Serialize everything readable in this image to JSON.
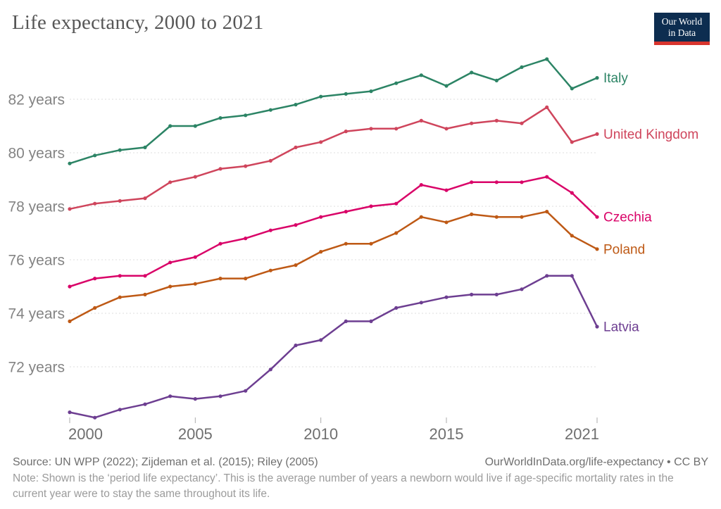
{
  "header": {
    "title": "Life expectancy, 2000 to 2021",
    "logo": {
      "line1": "Our World",
      "line2": "in Data"
    }
  },
  "footer": {
    "source": "Source: UN WPP (2022); Zijdeman et al. (2015); Riley (2005)",
    "attribution": "OurWorldInData.org/life-expectancy • CC BY",
    "note": "Note: Shown is the ‘period life expectancy’. This is the average number of years a newborn would live if age-specific mortality rates in the current year were to stay the same throughout its life."
  },
  "colors": {
    "title": "#575757",
    "axis_text": "#848484",
    "gridline": "#dcdcdc",
    "logo_navy": "#0d2d50",
    "logo_red": "#d8352e"
  },
  "chart_data": {
    "type": "line",
    "title": "Life expectancy, 2000 to 2021",
    "xlabel": "",
    "ylabel": "",
    "xlim": [
      2000,
      2021
    ],
    "ylim": [
      69.5,
      84
    ],
    "grid": "horizontal-dashed",
    "legend_position": "end-of-line-labels",
    "x_ticks": [
      2000,
      2005,
      2010,
      2015,
      2021
    ],
    "y_ticks": [
      72,
      74,
      76,
      78,
      80,
      82
    ],
    "y_tick_suffix": " years",
    "x": [
      2000,
      2001,
      2002,
      2003,
      2004,
      2005,
      2006,
      2007,
      2008,
      2009,
      2010,
      2011,
      2012,
      2013,
      2014,
      2015,
      2016,
      2017,
      2018,
      2019,
      2020,
      2021
    ],
    "series": [
      {
        "name": "Italy",
        "color": "#2C8465",
        "values": [
          79.6,
          79.9,
          80.1,
          80.2,
          81.0,
          81.0,
          81.3,
          81.4,
          81.6,
          81.8,
          82.1,
          82.2,
          82.3,
          82.6,
          82.9,
          82.5,
          83.0,
          82.7,
          83.2,
          83.5,
          82.4,
          82.8
        ]
      },
      {
        "name": "United Kingdom",
        "color": "#CF455C",
        "values": [
          77.9,
          78.1,
          78.2,
          78.3,
          78.9,
          79.1,
          79.4,
          79.5,
          79.7,
          80.2,
          80.4,
          80.8,
          80.9,
          80.9,
          81.2,
          80.9,
          81.1,
          81.2,
          81.1,
          81.7,
          80.4,
          80.7
        ]
      },
      {
        "name": "Czechia",
        "color": "#D90368",
        "values": [
          75.0,
          75.3,
          75.4,
          75.4,
          75.9,
          76.1,
          76.6,
          76.8,
          77.1,
          77.3,
          77.6,
          77.8,
          78.0,
          78.1,
          78.8,
          78.6,
          78.9,
          78.9,
          78.9,
          79.1,
          78.5,
          77.6
        ]
      },
      {
        "name": "Poland",
        "color": "#BE5915",
        "values": [
          73.7,
          74.2,
          74.6,
          74.7,
          75.0,
          75.1,
          75.3,
          75.3,
          75.6,
          75.8,
          76.3,
          76.6,
          76.6,
          77.0,
          77.6,
          77.4,
          77.7,
          77.6,
          77.6,
          77.8,
          76.9,
          76.4
        ]
      },
      {
        "name": "Latvia",
        "color": "#6D3E91",
        "values": [
          70.3,
          70.1,
          70.4,
          70.6,
          70.9,
          70.8,
          70.9,
          71.1,
          71.9,
          72.8,
          73.0,
          73.7,
          73.7,
          74.2,
          74.4,
          74.6,
          74.7,
          74.7,
          74.9,
          75.4,
          75.4,
          73.5
        ]
      }
    ]
  }
}
